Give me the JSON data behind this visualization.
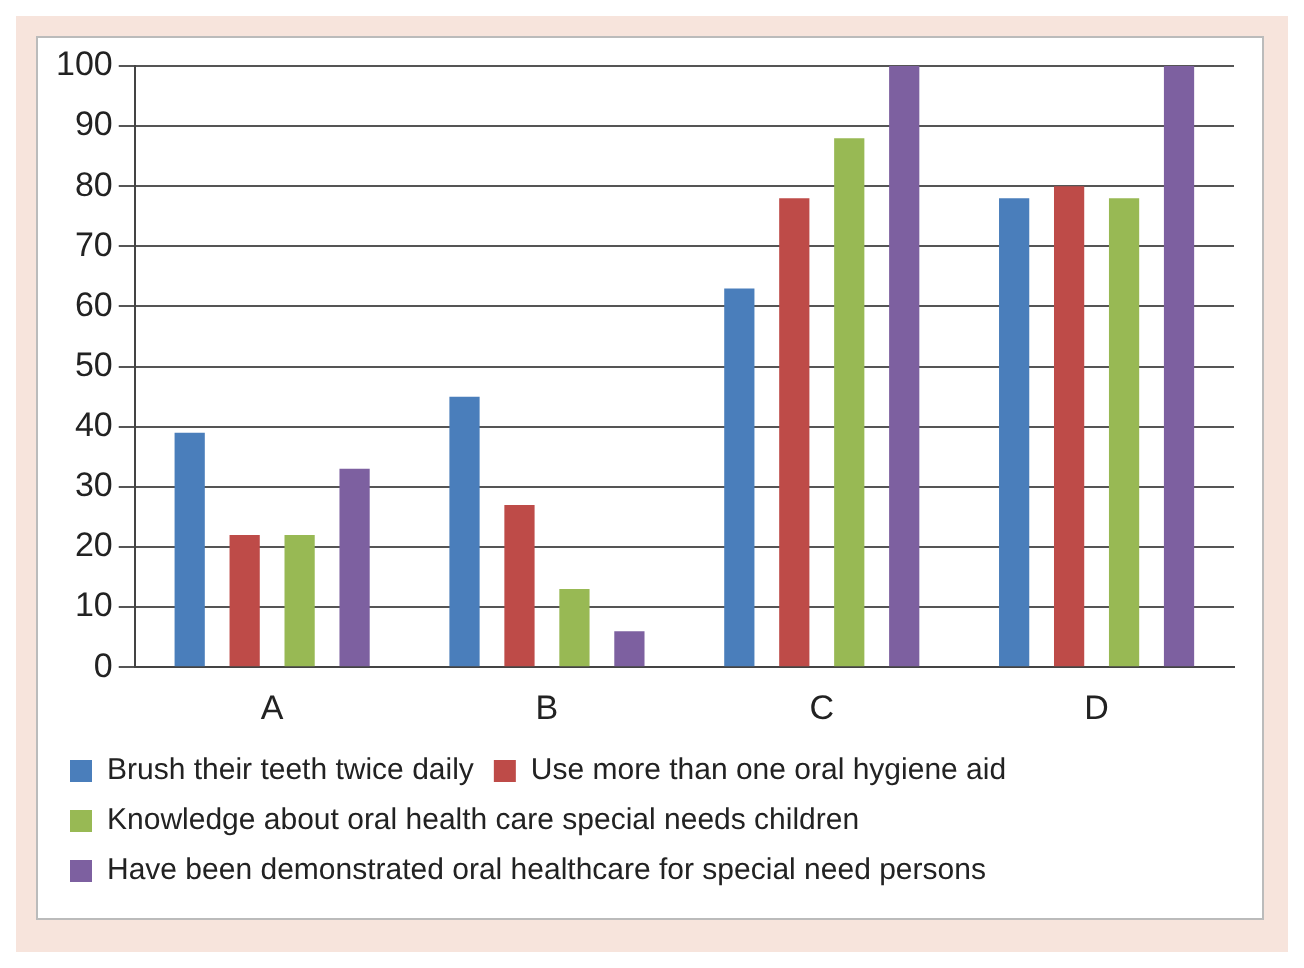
{
  "chart_data": {
    "type": "bar",
    "categories": [
      "A",
      "B",
      "C",
      "D"
    ],
    "series": [
      {
        "name": "Brush their teeth twice daily",
        "color": "#4a7ebb",
        "values": [
          39,
          45,
          63,
          78
        ]
      },
      {
        "name": "Use more than one oral hygiene aid",
        "color": "#be4b48",
        "values": [
          22,
          27,
          78,
          80
        ]
      },
      {
        "name": "Knowledge about oral health care special needs children",
        "color": "#98b954",
        "values": [
          22,
          13,
          88,
          78
        ]
      },
      {
        "name": "Have been demonstrated oral healthcare for special need persons",
        "color": "#7d60a0",
        "values": [
          33,
          6,
          100,
          100
        ]
      }
    ],
    "ylim": [
      0,
      100
    ],
    "yticks": [
      0,
      10,
      20,
      30,
      40,
      50,
      60,
      70,
      80,
      90,
      100
    ],
    "grid": "y",
    "legend": "bottom"
  }
}
